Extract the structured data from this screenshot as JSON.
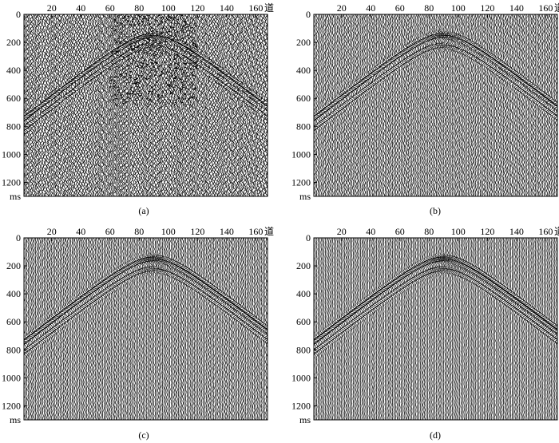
{
  "figure": {
    "panels": [
      {
        "label": "(a)",
        "x_unit": "道",
        "y_unit": "ms"
      },
      {
        "label": "(b)",
        "x_unit": "道",
        "y_unit": "ms"
      },
      {
        "label": "(c)",
        "x_unit": "道",
        "y_unit": "ms"
      },
      {
        "label": "(d)",
        "x_unit": "道",
        "y_unit": "ms"
      }
    ]
  },
  "chart_data": [
    {
      "type": "seismic-wiggle",
      "panel": "(a)",
      "x_ticks": [
        20,
        40,
        60,
        80,
        100,
        120,
        140,
        160
      ],
      "y_ticks": [
        0,
        200,
        400,
        600,
        800,
        1000,
        1200
      ],
      "xlim": [
        1,
        168
      ],
      "ylim": [
        0,
        1300
      ],
      "x_unit": "道",
      "y_unit": "ms",
      "apex_trace": 90,
      "apex_time_ms": 150,
      "event_strength": 1.0,
      "noise": 0.9,
      "spike_noise": true
    },
    {
      "type": "seismic-wiggle",
      "panel": "(b)",
      "x_ticks": [
        20,
        40,
        60,
        80,
        100,
        120,
        140,
        160
      ],
      "y_ticks": [
        0,
        200,
        400,
        600,
        800,
        1000,
        1200
      ],
      "xlim": [
        1,
        168
      ],
      "ylim": [
        0,
        1300
      ],
      "x_unit": "道",
      "y_unit": "ms",
      "apex_trace": 90,
      "apex_time_ms": 150,
      "event_strength": 0.9,
      "noise": 0.45,
      "spike_noise": false
    },
    {
      "type": "seismic-wiggle",
      "panel": "(c)",
      "x_ticks": [
        20,
        40,
        60,
        80,
        100,
        120,
        140,
        160
      ],
      "y_ticks": [
        0,
        200,
        400,
        600,
        800,
        1000,
        1200
      ],
      "xlim": [
        1,
        168
      ],
      "ylim": [
        0,
        1300
      ],
      "x_unit": "道",
      "y_unit": "ms",
      "apex_trace": 90,
      "apex_time_ms": 150,
      "event_strength": 0.95,
      "noise": 0.35,
      "spike_noise": false
    },
    {
      "type": "seismic-wiggle",
      "panel": "(d)",
      "x_ticks": [
        20,
        40,
        60,
        80,
        100,
        120,
        140,
        160
      ],
      "y_ticks": [
        0,
        200,
        400,
        600,
        800,
        1000,
        1200
      ],
      "xlim": [
        1,
        168
      ],
      "ylim": [
        0,
        1300
      ],
      "x_unit": "道",
      "y_unit": "ms",
      "apex_trace": 90,
      "apex_time_ms": 150,
      "event_strength": 1.0,
      "noise": 0.25,
      "spike_noise": false
    }
  ]
}
